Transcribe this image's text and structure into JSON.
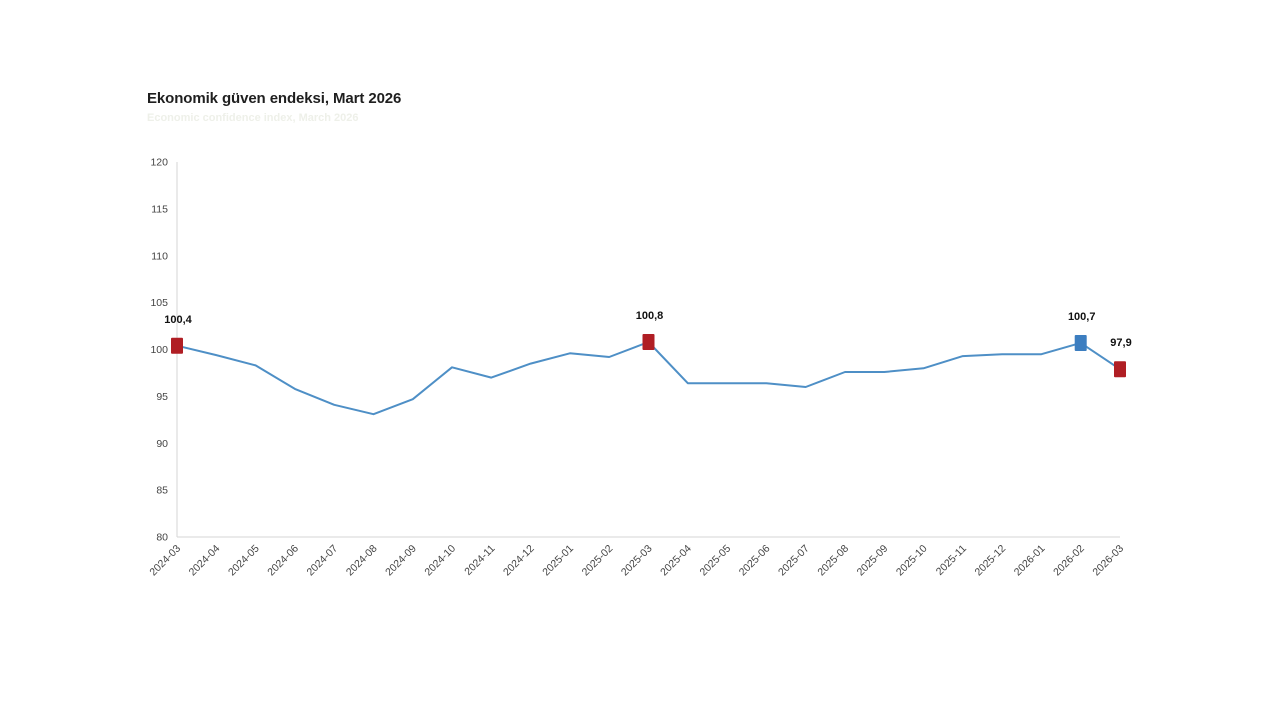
{
  "header": {
    "title": "Ekonomik güven endeksi, Mart 2026",
    "subtitle": "Economic confidence index, March 2026"
  },
  "chart_data": {
    "type": "line",
    "title": "Ekonomik güven endeksi, Mart 2026",
    "categories": [
      "2024-03",
      "2024-04",
      "2024-05",
      "2024-06",
      "2024-07",
      "2024-08",
      "2024-09",
      "2024-10",
      "2024-11",
      "2024-12",
      "2025-01",
      "2025-02",
      "2025-03",
      "2025-04",
      "2025-05",
      "2025-06",
      "2025-07",
      "2025-08",
      "2025-09",
      "2025-10",
      "2025-11",
      "2025-12",
      "2026-01",
      "2026-02",
      "2026-03"
    ],
    "values": [
      100.4,
      99.4,
      98.3,
      95.8,
      94.1,
      93.1,
      94.7,
      98.1,
      97.0,
      98.5,
      99.6,
      99.2,
      100.8,
      96.4,
      96.4,
      96.4,
      96.0,
      97.6,
      97.6,
      98.0,
      99.3,
      99.5,
      99.5,
      100.7,
      97.9
    ],
    "ylim": [
      80,
      120
    ],
    "yticks": [
      80,
      85,
      90,
      95,
      100,
      105,
      110,
      115,
      120
    ],
    "grid": false,
    "legend": "none",
    "xlabel": "",
    "ylabel": "",
    "highlighted_points": [
      {
        "category": "2024-03",
        "index": 0,
        "value": 100.4,
        "label": "100,4",
        "marker_color": "#b01e24"
      },
      {
        "category": "2025-03",
        "index": 12,
        "value": 100.8,
        "label": "100,8",
        "marker_color": "#b01e24"
      },
      {
        "category": "2026-02",
        "index": 23,
        "value": 100.7,
        "label": "100,7",
        "marker_color": "#3c7ec0"
      },
      {
        "category": "2026-03",
        "index": 24,
        "value": 97.9,
        "label": "97,9",
        "marker_color": "#b01e24"
      }
    ],
    "colors": {
      "line": "#4e8fc6",
      "axis": "#d6d6d6",
      "tick_labels": "#444444",
      "point_labels": "#111111",
      "highlight_red": "#b01e24",
      "highlight_blue": "#3c7ec0"
    }
  }
}
